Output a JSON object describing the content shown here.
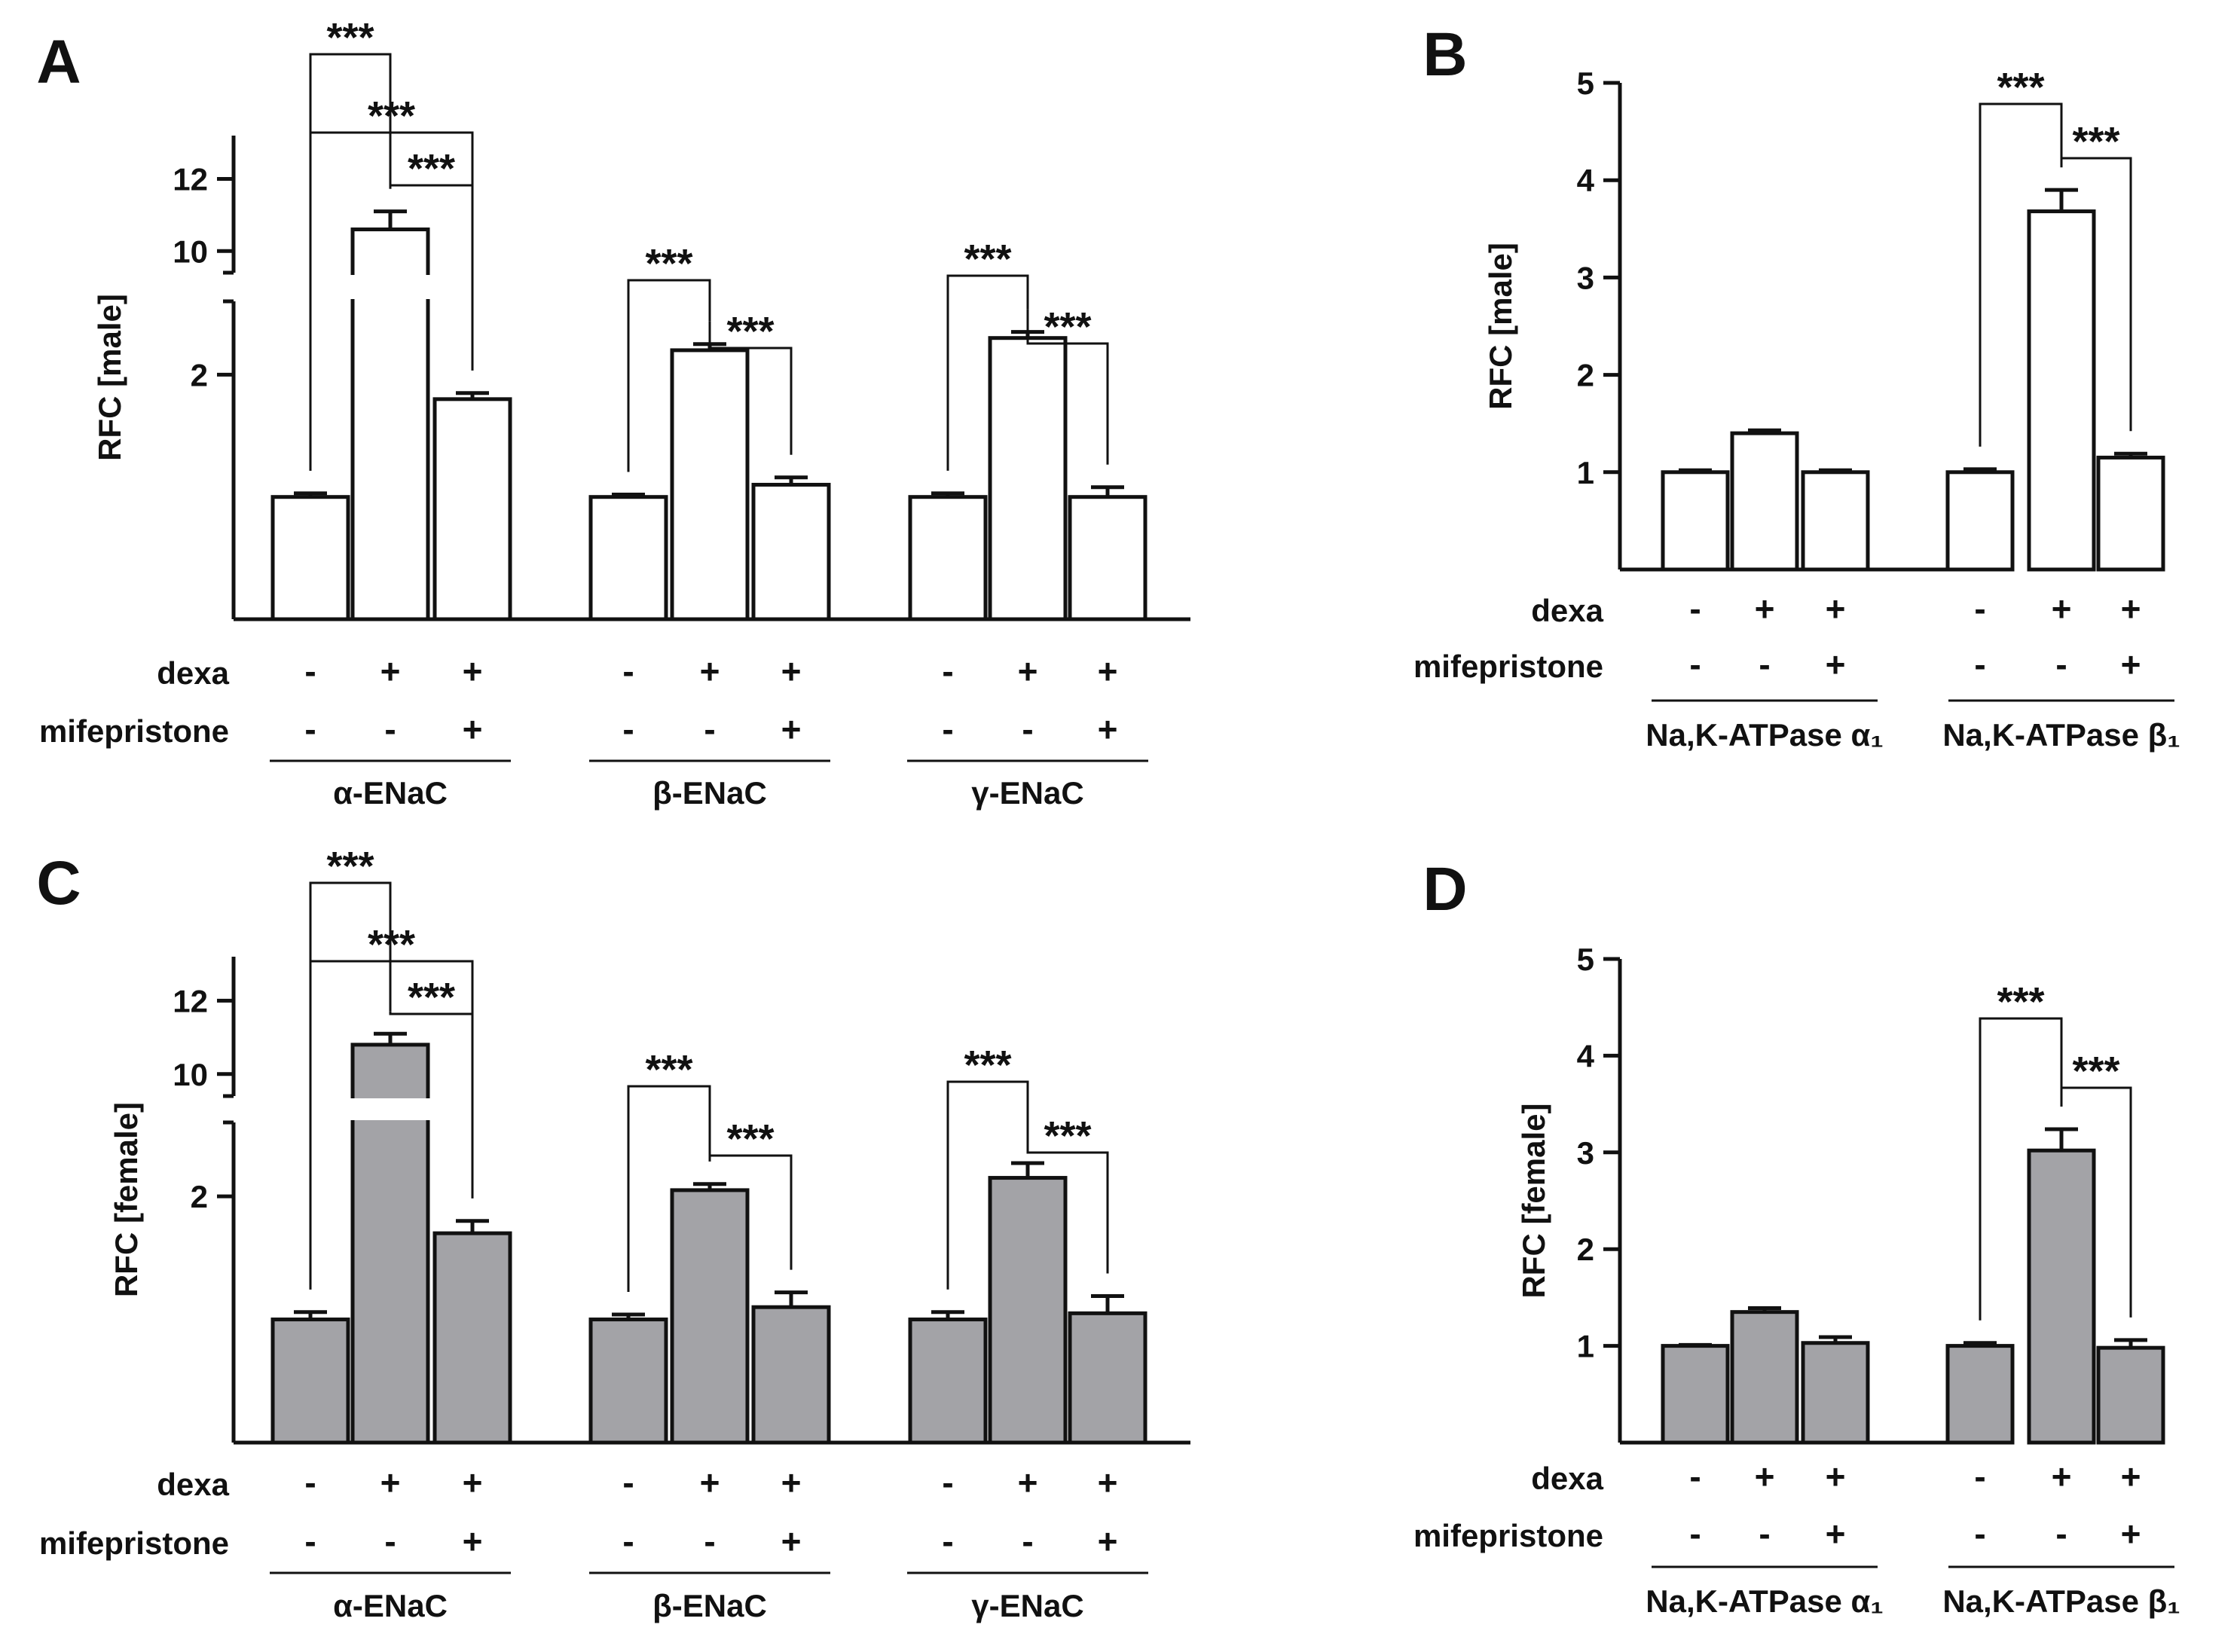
{
  "conditions": {
    "dexa_label": "dexa",
    "mife_label": "mifepristone",
    "dexa_signs": [
      "-",
      "+",
      "+"
    ],
    "mife_signs": [
      "-",
      "-",
      "+"
    ]
  },
  "sig_label": "***",
  "chart_data": [
    {
      "panel": "A",
      "type": "bar",
      "broken_axis": true,
      "ylabel": "RFC [male]",
      "yticks": [
        "2",
        "10",
        "12"
      ],
      "bar_color": "#ffffff",
      "groups": [
        "α-ENaC",
        "β-ENaC",
        "γ-ENaC"
      ],
      "values": [
        [
          1,
          10.6,
          1.8
        ],
        [
          1,
          2.2,
          1.1
        ],
        [
          1,
          2.3,
          1
        ]
      ],
      "errors": [
        [
          0.03,
          0.5,
          0.05
        ],
        [
          0.02,
          0.05,
          0.06
        ],
        [
          0.03,
          0.05,
          0.08
        ]
      ],
      "significance": [
        {
          "group": 0,
          "from": 0,
          "to": 1,
          "label": "***"
        },
        {
          "group": 0,
          "from": 0,
          "to": 2,
          "label": "***"
        },
        {
          "group": 0,
          "from": 1,
          "to": 2,
          "label": "***"
        },
        {
          "group": 1,
          "from": 0,
          "to": 1,
          "label": "***"
        },
        {
          "group": 1,
          "from": 1,
          "to": 2,
          "label": "***"
        },
        {
          "group": 2,
          "from": 0,
          "to": 1,
          "label": "***"
        },
        {
          "group": 2,
          "from": 1,
          "to": 2,
          "label": "***"
        }
      ]
    },
    {
      "panel": "B",
      "type": "bar",
      "broken_axis": false,
      "ylabel": "RFC [male]",
      "ylim": [
        0,
        5
      ],
      "yticks": [
        "1",
        "2",
        "3",
        "4",
        "5"
      ],
      "bar_color": "#ffffff",
      "groups": [
        "Na,K-ATPase α₁",
        "Na,K-ATPase β₁"
      ],
      "values": [
        [
          1,
          1.4,
          1
        ],
        [
          1,
          3.68,
          1.15
        ]
      ],
      "errors": [
        [
          0.02,
          0.03,
          0.02
        ],
        [
          0.03,
          0.22,
          0.04
        ]
      ],
      "significance": [
        {
          "group": 1,
          "from": 0,
          "to": 1,
          "label": "***"
        },
        {
          "group": 1,
          "from": 1,
          "to": 2,
          "label": "***"
        }
      ]
    },
    {
      "panel": "C",
      "type": "bar",
      "broken_axis": true,
      "ylabel": "RFC [female]",
      "yticks": [
        "2",
        "10",
        "12"
      ],
      "bar_color": "#a3a3a7",
      "groups": [
        "α-ENaC",
        "β-ENaC",
        "γ-ENaC"
      ],
      "values": [
        [
          1,
          10.8,
          1.7
        ],
        [
          1,
          2.05,
          1.1
        ],
        [
          1,
          2.15,
          1.05
        ]
      ],
      "errors": [
        [
          0.06,
          0.3,
          0.1
        ],
        [
          0.04,
          0.05,
          0.12
        ],
        [
          0.06,
          0.12,
          0.14
        ]
      ],
      "significance": [
        {
          "group": 0,
          "from": 0,
          "to": 1,
          "label": "***"
        },
        {
          "group": 0,
          "from": 0,
          "to": 2,
          "label": "***"
        },
        {
          "group": 0,
          "from": 1,
          "to": 2,
          "label": "***"
        },
        {
          "group": 1,
          "from": 0,
          "to": 1,
          "label": "***"
        },
        {
          "group": 1,
          "from": 1,
          "to": 2,
          "label": "***"
        },
        {
          "group": 2,
          "from": 0,
          "to": 1,
          "label": "***"
        },
        {
          "group": 2,
          "from": 1,
          "to": 2,
          "label": "***"
        }
      ]
    },
    {
      "panel": "D",
      "type": "bar",
      "broken_axis": false,
      "ylabel": "RFC [female]",
      "ylim": [
        0,
        5
      ],
      "yticks": [
        "1",
        "2",
        "3",
        "4",
        "5"
      ],
      "bar_color": "#a3a3a7",
      "groups": [
        "Na,K-ATPase α₁",
        "Na,K-ATPase β₁"
      ],
      "values": [
        [
          1,
          1.35,
          1.03
        ],
        [
          1,
          3.02,
          0.98
        ]
      ],
      "errors": [
        [
          0.01,
          0.04,
          0.06
        ],
        [
          0.03,
          0.22,
          0.08
        ]
      ],
      "significance": [
        {
          "group": 1,
          "from": 0,
          "to": 1,
          "label": "***"
        },
        {
          "group": 1,
          "from": 1,
          "to": 2,
          "label": "***"
        }
      ]
    }
  ]
}
